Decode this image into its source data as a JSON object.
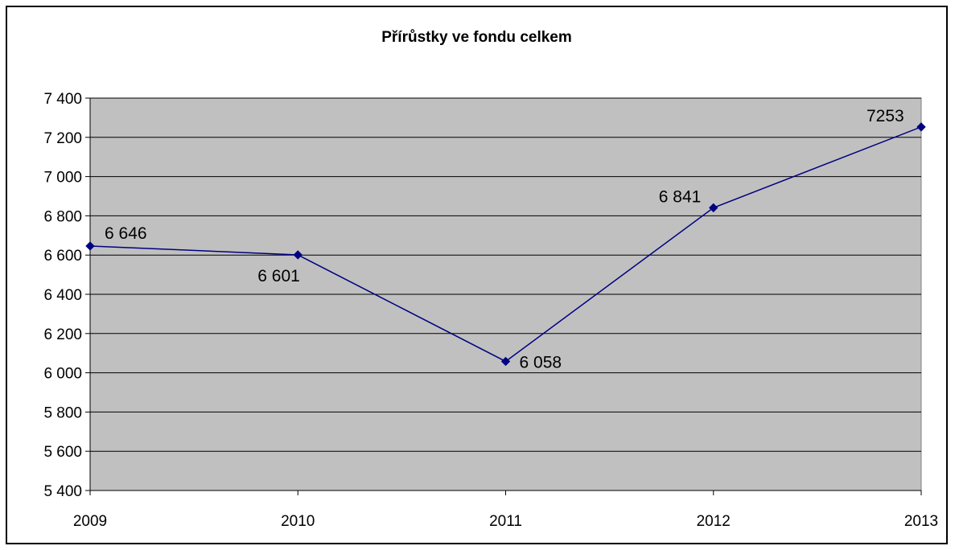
{
  "chart_data": {
    "type": "line",
    "title": "Přírůstky ve fondu celkem",
    "xlabel": "",
    "ylabel": "",
    "categories": [
      "2009",
      "2010",
      "2011",
      "2012",
      "2013"
    ],
    "series": [
      {
        "values": [
          6646,
          6601,
          6058,
          6841,
          7253
        ],
        "data_labels": [
          "6 646",
          "6 601",
          "6 058",
          "6 841",
          "7253"
        ]
      }
    ],
    "ylim": [
      5400,
      7400
    ],
    "yticks": [
      5400,
      5600,
      5800,
      6000,
      6200,
      6400,
      6600,
      6800,
      7000,
      7200,
      7400
    ],
    "ytick_labels": [
      "5 400",
      "5 600",
      "5 800",
      "6 000",
      "6 200",
      "6 400",
      "6 600",
      "6 800",
      "7 000",
      "7 200",
      "7 400"
    ],
    "grid": true,
    "legend": "none",
    "colors": {
      "plot_background": "#c0c0c0",
      "line": "#000080",
      "gridline": "#000000"
    }
  }
}
